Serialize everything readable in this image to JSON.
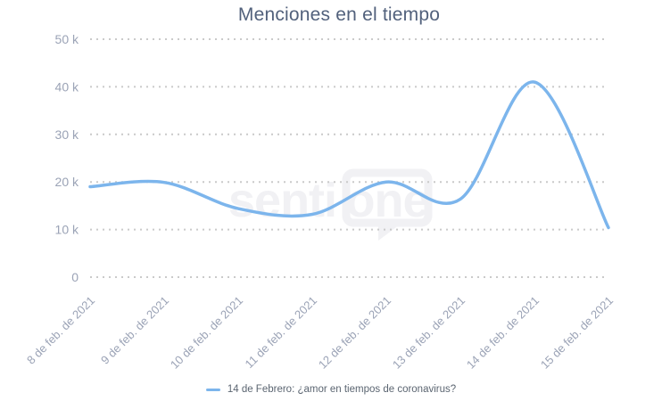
{
  "title": "Menciones en el tiempo",
  "legend": {
    "label": "14 de Febrero: ¿amor en tiempos de coronavirus?",
    "marker_color": "#7cb5ec"
  },
  "watermark": {
    "text_left": "senti",
    "text_bubble": "one",
    "color": "#f1f1f4"
  },
  "chart_data": {
    "type": "line",
    "title": "Menciones en el tiempo",
    "categories": [
      "8 de feb. de 2021",
      "9 de feb. de 2021",
      "10 de feb. de 2021",
      "11 de feb. de 2021",
      "12 de feb. de 2021",
      "13 de feb. de 2021",
      "14 de feb. de 2021",
      "15 de feb. de 2021"
    ],
    "series": [
      {
        "name": "14 de Febrero: ¿amor en tiempos de coronavirus?",
        "values": [
          19000,
          19900,
          14400,
          13200,
          20000,
          16400,
          41000,
          10400
        ]
      }
    ],
    "ylim": [
      0,
      50000
    ],
    "yticks": [
      {
        "value": 0,
        "label": "0"
      },
      {
        "value": 10000,
        "label": "10 k"
      },
      {
        "value": 20000,
        "label": "20 k"
      },
      {
        "value": 30000,
        "label": "30 k"
      },
      {
        "value": 40000,
        "label": "40 k"
      },
      {
        "value": 50000,
        "label": "50 k"
      }
    ],
    "xlabel": "",
    "ylabel": "",
    "grid": "dotted-horizontal",
    "legend_position": "bottom",
    "smooth": true,
    "line_color": "#7cb5ec",
    "grid_color": "#cacaca",
    "axis_label_color": "#9ba3b6"
  }
}
